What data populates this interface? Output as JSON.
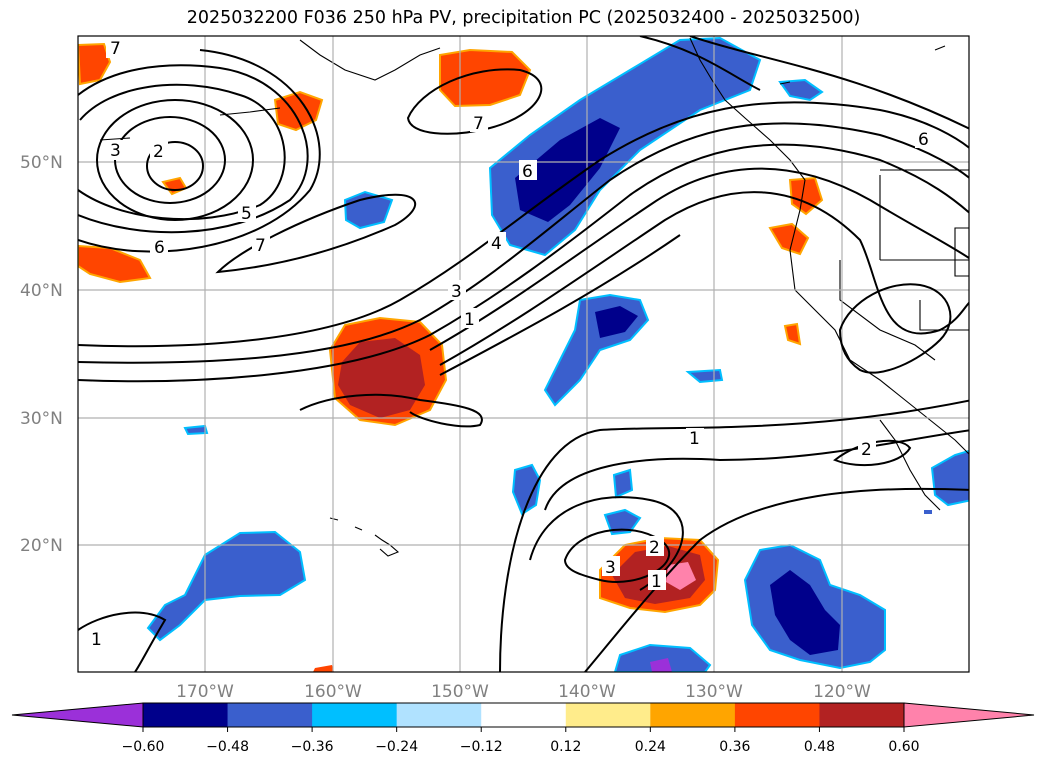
{
  "title": "2025032200 F036 250 hPa PV, precipitation PC (2025032400 - 2025032500)",
  "map": {
    "lat_labels": [
      "50°N",
      "40°N",
      "30°N",
      "20°N"
    ],
    "lon_labels": [
      "170°W",
      "160°W",
      "150°W",
      "140°W",
      "130°W",
      "120°W"
    ]
  },
  "contour_labels": [
    "7",
    "3",
    "2",
    "5",
    "6",
    "7",
    "6",
    "4",
    "3",
    "1",
    "7",
    "6",
    "1",
    "2",
    "2",
    "3",
    "1",
    "1"
  ],
  "colorbar": {
    "colors": [
      "#9b30d9",
      "#00008b",
      "#3a5fcd",
      "#00bfff",
      "#b0e2ff",
      "#ffffff",
      "#ffec8b",
      "#ffa500",
      "#ff4500",
      "#b22222",
      "#ff82ab"
    ],
    "ticks": [
      "−0.60",
      "−0.48",
      "−0.36",
      "−0.24",
      "−0.12",
      "0.12",
      "0.24",
      "0.36",
      "0.48",
      "0.60"
    ]
  }
}
